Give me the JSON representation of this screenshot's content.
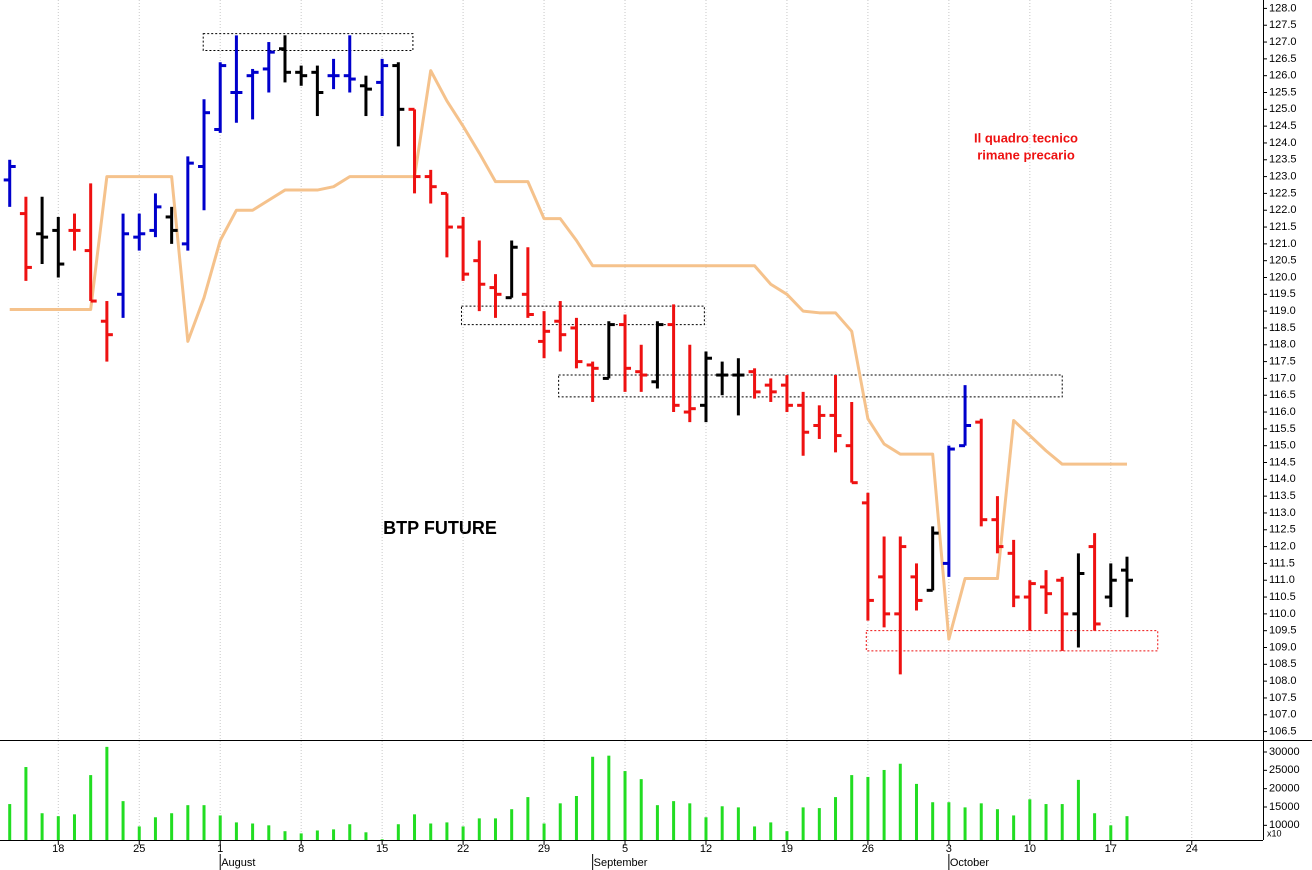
{
  "chart_data": {
    "type": "ohlc",
    "title": "BTP FUTURE",
    "annotation": [
      "Il quadro tecnico",
      "rimane precario"
    ],
    "x": [
      0,
      1,
      2,
      3,
      4,
      5,
      6,
      7,
      8,
      9,
      10,
      11,
      12,
      13,
      14,
      15,
      16,
      17,
      18,
      19,
      20,
      21,
      22,
      23,
      24,
      25,
      26,
      27,
      28,
      29,
      30,
      31,
      32,
      33,
      34,
      35,
      36,
      37,
      38,
      39,
      40,
      41,
      42,
      43,
      44,
      45,
      46,
      47,
      48,
      49,
      50,
      51,
      52,
      53,
      54,
      55,
      56,
      57,
      58,
      59,
      60,
      61,
      62,
      63,
      64,
      65,
      66,
      67,
      68,
      69
    ],
    "xlim": [
      -0.6,
      77.4
    ],
    "xticks": [
      {
        "value": 3,
        "label": "18"
      },
      {
        "value": 8,
        "label": "25"
      },
      {
        "value": 13,
        "label": "1"
      },
      {
        "value": 18,
        "label": "8"
      },
      {
        "value": 23,
        "label": "15"
      },
      {
        "value": 28,
        "label": "22"
      },
      {
        "value": 33,
        "label": "29"
      },
      {
        "value": 38,
        "label": "5"
      },
      {
        "value": 43,
        "label": "12"
      },
      {
        "value": 48,
        "label": "19"
      },
      {
        "value": 53,
        "label": "26"
      },
      {
        "value": 58,
        "label": "3"
      },
      {
        "value": 63,
        "label": "10"
      },
      {
        "value": 68,
        "label": "17"
      },
      {
        "value": 73,
        "label": "24"
      }
    ],
    "month_labels": [
      {
        "value": 13,
        "label": "August"
      },
      {
        "value": 36,
        "label": "September"
      },
      {
        "value": 58,
        "label": "October"
      }
    ],
    "grid": true,
    "open": [
      122.9,
      121.9,
      121.3,
      121.4,
      121.4,
      120.8,
      118.7,
      119.5,
      121.2,
      121.4,
      121.8,
      121.0,
      123.3,
      124.4,
      125.5,
      126.0,
      126.2,
      126.8,
      126.1,
      126.1,
      126.0,
      126.0,
      125.7,
      125.8,
      126.3,
      125.0,
      123.0,
      122.5,
      121.5,
      120.5,
      119.7,
      119.4,
      119.5,
      118.1,
      118.7,
      118.5,
      117.4,
      117.0,
      118.6,
      117.2,
      116.9,
      118.6,
      116.0,
      116.2,
      117.1,
      117.1,
      117.2,
      116.8,
      116.8,
      116.2,
      115.6,
      115.9,
      115.0,
      113.3,
      111.1,
      110.0,
      111.1,
      110.7,
      111.5,
      115.0,
      115.7,
      112.8,
      111.8,
      110.5,
      110.8,
      111.0,
      110.0,
      112.0,
      110.5,
      111.3
    ],
    "high": [
      123.5,
      122.4,
      122.4,
      121.8,
      121.9,
      122.8,
      119.3,
      121.9,
      121.9,
      122.5,
      122.1,
      123.6,
      125.3,
      126.4,
      127.2,
      126.2,
      127.0,
      127.2,
      126.3,
      126.3,
      126.5,
      127.2,
      126.0,
      126.5,
      126.4,
      125.0,
      123.2,
      122.5,
      121.8,
      121.1,
      120.1,
      121.1,
      120.9,
      119.0,
      119.3,
      118.8,
      117.5,
      118.7,
      118.9,
      118.0,
      118.7,
      119.2,
      118.0,
      117.8,
      117.5,
      117.6,
      117.3,
      117.0,
      117.1,
      116.6,
      116.2,
      117.1,
      116.3,
      113.6,
      112.3,
      112.3,
      111.5,
      112.6,
      115.0,
      116.8,
      115.8,
      113.5,
      112.2,
      111.0,
      111.3,
      111.1,
      111.8,
      112.4,
      111.5,
      111.7
    ],
    "low": [
      122.1,
      119.9,
      120.4,
      120.0,
      120.8,
      119.3,
      117.5,
      118.8,
      120.8,
      121.2,
      121.0,
      120.8,
      122.0,
      124.3,
      124.6,
      124.7,
      125.5,
      125.8,
      125.7,
      124.8,
      125.6,
      125.5,
      124.8,
      124.8,
      123.9,
      122.5,
      122.2,
      120.6,
      119.9,
      119.0,
      118.8,
      119.4,
      118.8,
      117.6,
      117.8,
      117.3,
      116.3,
      117.0,
      116.6,
      116.6,
      116.7,
      116.0,
      115.7,
      115.7,
      116.5,
      115.9,
      116.4,
      116.3,
      116.0,
      114.7,
      115.2,
      114.8,
      113.9,
      109.8,
      109.6,
      108.2,
      110.1,
      110.7,
      111.1,
      115.0,
      112.6,
      111.8,
      110.2,
      109.5,
      110.0,
      108.9,
      109.0,
      109.5,
      110.2,
      109.9
    ],
    "close": [
      123.3,
      120.3,
      121.2,
      120.4,
      121.4,
      119.3,
      118.3,
      121.3,
      121.3,
      122.1,
      121.4,
      123.4,
      124.9,
      126.3,
      125.5,
      126.1,
      126.7,
      126.1,
      126.0,
      125.5,
      126.0,
      125.9,
      125.6,
      126.3,
      125.0,
      123.0,
      122.7,
      121.5,
      120.1,
      119.8,
      119.5,
      120.9,
      118.9,
      118.4,
      118.3,
      117.5,
      117.3,
      118.6,
      117.3,
      117.1,
      118.6,
      116.2,
      116.1,
      117.6,
      117.1,
      117.1,
      116.6,
      116.6,
      116.2,
      115.4,
      115.9,
      115.3,
      113.9,
      110.4,
      110.0,
      112.0,
      110.4,
      112.4,
      114.9,
      115.6,
      112.8,
      112.0,
      110.5,
      110.9,
      110.6,
      110.0,
      111.2,
      109.7,
      111.0,
      111.0
    ],
    "colors": [
      "#0000cc",
      "#ee1111",
      "#000000",
      "#000000",
      "#ee1111",
      "#ee1111",
      "#ee1111",
      "#0000cc",
      "#0000cc",
      "#0000cc",
      "#000000",
      "#0000cc",
      "#0000cc",
      "#0000cc",
      "#0000cc",
      "#0000cc",
      "#0000cc",
      "#000000",
      "#000000",
      "#000000",
      "#0000cc",
      "#0000cc",
      "#000000",
      "#0000cc",
      "#000000",
      "#ee1111",
      "#ee1111",
      "#ee1111",
      "#ee1111",
      "#ee1111",
      "#ee1111",
      "#000000",
      "#ee1111",
      "#ee1111",
      "#ee1111",
      "#ee1111",
      "#ee1111",
      "#000000",
      "#ee1111",
      "#ee1111",
      "#000000",
      "#ee1111",
      "#ee1111",
      "#000000",
      "#000000",
      "#000000",
      "#ee1111",
      "#ee1111",
      "#ee1111",
      "#ee1111",
      "#ee1111",
      "#ee1111",
      "#ee1111",
      "#ee1111",
      "#ee1111",
      "#ee1111",
      "#ee1111",
      "#000000",
      "#0000cc",
      "#0000cc",
      "#ee1111",
      "#ee1111",
      "#ee1111",
      "#ee1111",
      "#ee1111",
      "#ee1111",
      "#000000",
      "#ee1111",
      "#000000",
      "#000000"
    ],
    "line": {
      "color": "#f5c28c",
      "values": [
        119.05,
        119.05,
        119.05,
        119.05,
        119.05,
        119.05,
        123.0,
        123.0,
        123.0,
        123.0,
        123.0,
        118.1,
        119.4,
        121.1,
        122.0,
        122.0,
        122.3,
        122.6,
        122.6,
        122.6,
        122.7,
        123.0,
        123.0,
        123.0,
        123.0,
        123.0,
        126.15,
        125.25,
        124.5,
        123.7,
        122.85,
        122.85,
        122.85,
        121.75,
        121.75,
        121.1,
        120.35,
        120.35,
        120.35,
        120.35,
        120.35,
        120.35,
        120.35,
        120.35,
        120.35,
        120.35,
        120.35,
        119.8,
        119.5,
        119.0,
        118.95,
        118.95,
        118.4,
        115.8,
        115.05,
        114.75,
        114.75,
        114.75,
        109.25,
        111.05,
        111.05,
        111.05,
        115.75,
        115.3,
        114.85,
        114.45,
        114.45,
        114.45,
        114.45,
        114.45
      ]
    },
    "zones": [
      {
        "x": [
          11.95,
          24.9
        ],
        "y": [
          126.75,
          127.25
        ],
        "color": "#000000"
      },
      {
        "x": [
          27.9,
          42.9
        ],
        "y": [
          118.6,
          119.15
        ],
        "color": "#000000"
      },
      {
        "x": [
          33.9,
          65.0
        ],
        "y": [
          116.45,
          117.1
        ],
        "color": "#000000"
      },
      {
        "x": [
          52.9,
          70.9
        ],
        "y": [
          108.9,
          109.5
        ],
        "color": "#ee1111"
      }
    ],
    "ylim": [
      106.25,
      128.25
    ],
    "yticks": [
      {
        "value": 128,
        "label": "128.0"
      },
      127.5,
      {
        "value": 127,
        "label": "127.0"
      },
      126.5,
      {
        "value": 126,
        "label": "126.0"
      },
      125.5,
      {
        "value": 125,
        "label": "125.0"
      },
      124.5,
      {
        "value": 124,
        "label": "124.0"
      },
      123.5,
      {
        "value": 123,
        "label": "123.0"
      },
      122.5,
      {
        "value": 122,
        "label": "122.0"
      },
      121.5,
      {
        "value": 121,
        "label": "121.0"
      },
      120.5,
      {
        "value": 120,
        "label": "120.0"
      },
      119.5,
      {
        "value": 119,
        "label": "119.0"
      },
      118.5,
      {
        "value": 118,
        "label": "118.0"
      },
      117.5,
      {
        "value": 117,
        "label": "117.0"
      },
      116.5,
      {
        "value": 116,
        "label": "116.0"
      },
      115.5,
      {
        "value": 115,
        "label": "115.0"
      },
      114.5,
      {
        "value": 114,
        "label": "114.0"
      },
      113.5,
      {
        "value": 113,
        "label": "113.0"
      },
      112.5,
      {
        "value": 112,
        "label": "112.0"
      },
      111.5,
      {
        "value": 111,
        "label": "111.0"
      },
      110.5,
      {
        "value": 110,
        "label": "110.0"
      },
      109.5,
      {
        "value": 109,
        "label": "109.0"
      },
      108.5,
      {
        "value": 108,
        "label": "108.0"
      },
      107.5,
      {
        "value": 107,
        "label": "107.0"
      },
      106.5
    ],
    "volume": {
      "type": "bar",
      "color": "#22dd22",
      "axis_note": "x10",
      "values": [
        15800,
        25900,
        13300,
        12500,
        13000,
        23700,
        31400,
        16600,
        9700,
        12200,
        13300,
        15500,
        15500,
        12700,
        10800,
        10500,
        10000,
        8400,
        7800,
        8600,
        8900,
        10300,
        8100,
        6200,
        10300,
        13000,
        10500,
        10800,
        9700,
        11900,
        11900,
        14400,
        17700,
        10500,
        16000,
        18000,
        28700,
        29000,
        24800,
        22600,
        15500,
        16600,
        16000,
        12200,
        15200,
        14900,
        9700,
        10800,
        8400,
        14900,
        14700,
        17700,
        23700,
        23200,
        25100,
        26800,
        21300,
        16300,
        16300,
        14900,
        16000,
        14400,
        12700,
        17100,
        15800,
        15800,
        22400,
        13300,
        10000,
        12500
      ],
      "ylim": [
        6000,
        33000
      ],
      "yticks": [
        30000,
        25000,
        20000,
        15000,
        10000
      ]
    }
  }
}
